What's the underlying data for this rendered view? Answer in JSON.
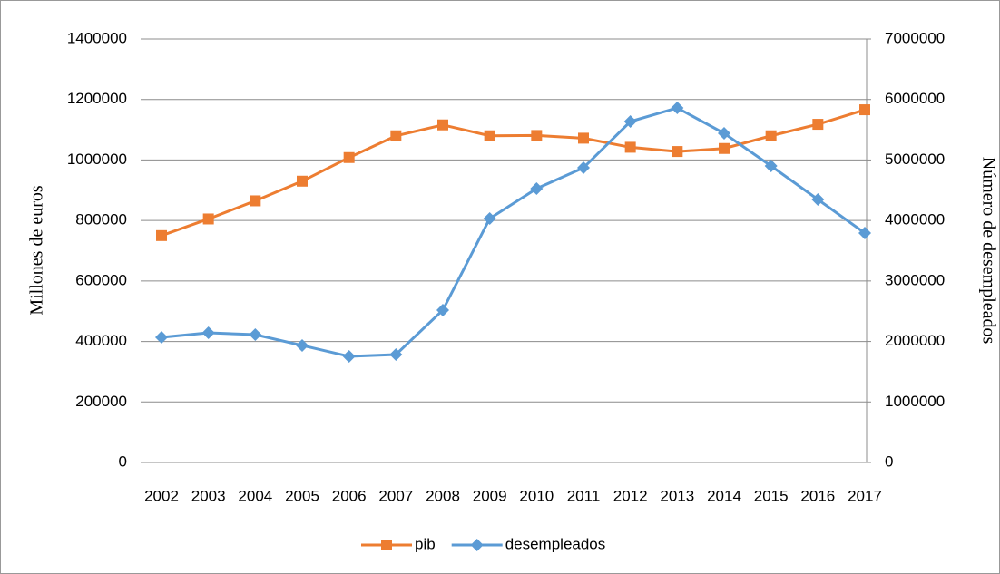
{
  "chart_data": {
    "type": "line",
    "ylabel": "Millones de euros",
    "y2label": "Número de desempleados",
    "categories": [
      "2002",
      "2003",
      "2004",
      "2005",
      "2006",
      "2007",
      "2008",
      "2009",
      "2010",
      "2011",
      "2012",
      "2013",
      "2014",
      "2015",
      "2016",
      "2017"
    ],
    "series": [
      {
        "name": "pib",
        "color": "#ed7d31",
        "marker": "square",
        "axis": "y",
        "values": [
          750000,
          805000,
          865000,
          930000,
          1008000,
          1080000,
          1116000,
          1080000,
          1081000,
          1072000,
          1042000,
          1028000,
          1038000,
          1080000,
          1118000,
          1166000
        ]
      },
      {
        "name": "desempleados",
        "color": "#5b9bd5",
        "marker": "diamond",
        "axis": "y2",
        "values": [
          2068000,
          2143000,
          2113000,
          1934000,
          1754000,
          1784000,
          2518000,
          4032000,
          4527000,
          4871000,
          5636000,
          5861000,
          5441000,
          4902000,
          4347000,
          3792000
        ]
      }
    ],
    "ylim": [
      0,
      1400000
    ],
    "yticks": [
      0,
      200000,
      400000,
      600000,
      800000,
      1000000,
      1200000,
      1400000
    ],
    "y2lim": [
      0,
      7000000
    ],
    "y2ticks": [
      0,
      1000000,
      2000000,
      3000000,
      4000000,
      5000000,
      6000000,
      7000000
    ],
    "grid": true,
    "legend": "bottom"
  }
}
